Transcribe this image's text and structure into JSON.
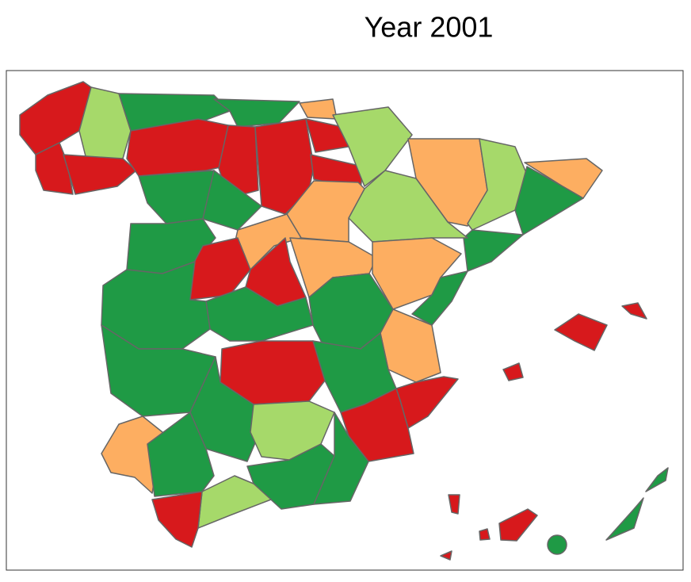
{
  "title": "Year 2001"
}
